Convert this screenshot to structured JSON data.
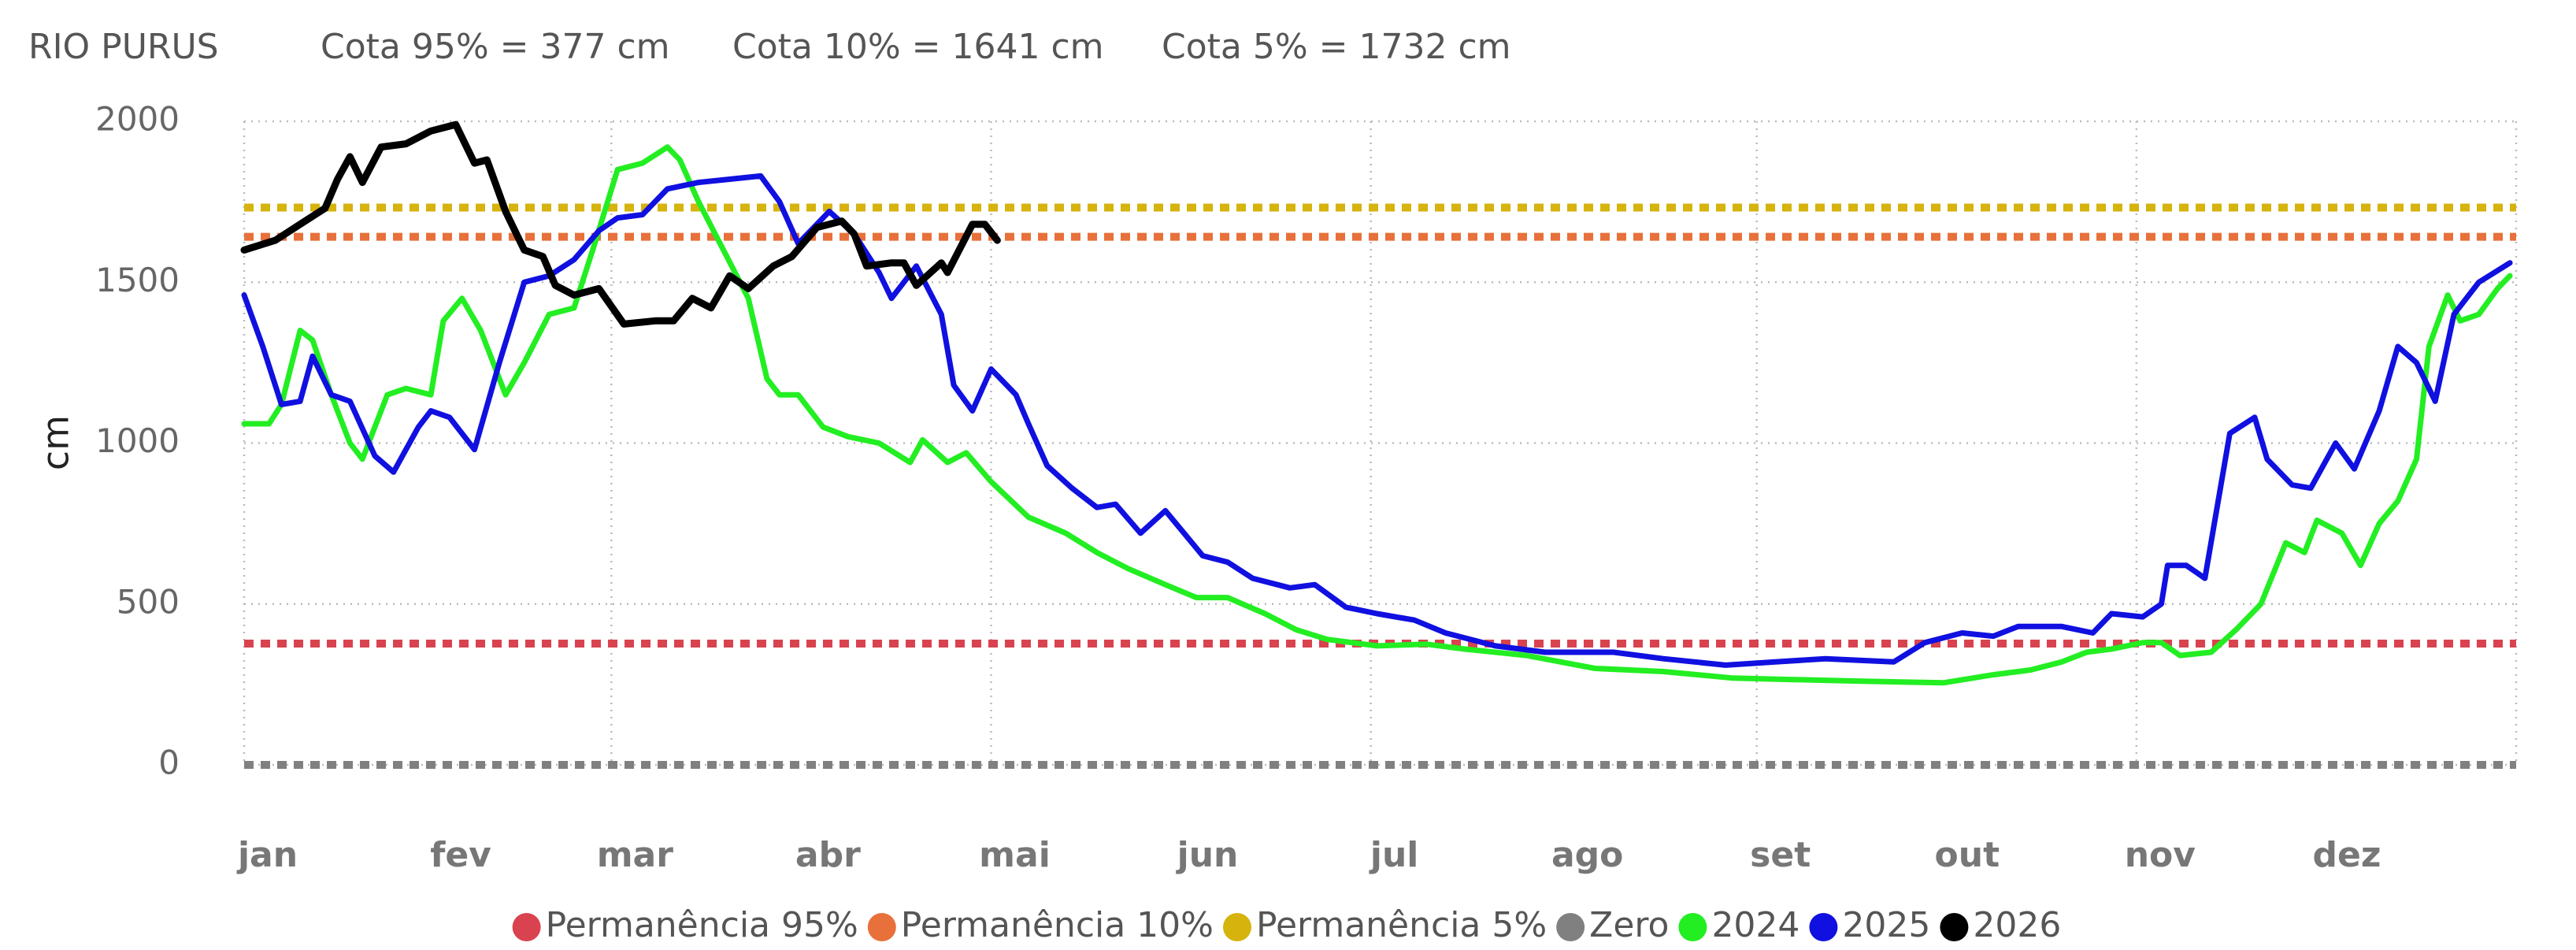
{
  "chart_data": {
    "type": "line",
    "title": "RIO PURUS",
    "annotations": [
      "Cota 95% = 377 cm",
      "Cota 10% = 1641 cm",
      "Cota 5% = 1732 cm"
    ],
    "y_label": "cm",
    "xlim": [
      1,
      366
    ],
    "xticks": [
      {
        "value": 1,
        "label": "jan"
      },
      {
        "value": 32,
        "label": "fev"
      },
      {
        "value": 60,
        "label": "mar"
      },
      {
        "value": 91,
        "label": "abr"
      },
      {
        "value": 121,
        "label": "mai"
      },
      {
        "value": 152,
        "label": "jun"
      },
      {
        "value": 182,
        "label": "jul"
      },
      {
        "value": 213,
        "label": "ago"
      },
      {
        "value": 244,
        "label": "set"
      },
      {
        "value": 274,
        "label": "out"
      },
      {
        "value": 305,
        "label": "nov"
      },
      {
        "value": 335,
        "label": "dez"
      }
    ],
    "ylim": [
      0,
      2000
    ],
    "yticks": [
      0,
      500,
      1000,
      1500,
      2000
    ],
    "grid": true,
    "legend": "bottom",
    "reference_lines": [
      {
        "name": "Permanência 95%",
        "color": "#d9434f",
        "value": 377
      },
      {
        "name": "Permanência 10%",
        "color": "#e8703a",
        "value": 1641
      },
      {
        "name": "Permanência 5%",
        "color": "#d6b30d",
        "value": 1732
      },
      {
        "name": "Zero",
        "color": "#808080",
        "value": 0
      }
    ],
    "series": [
      {
        "name": "2024",
        "color": "#22ee22",
        "x": [
          1,
          5,
          7,
          10,
          12,
          15,
          18,
          20,
          24,
          27,
          31,
          33,
          36,
          39,
          43,
          46,
          50,
          54,
          57,
          61,
          65,
          69,
          71,
          74,
          78,
          82,
          85,
          87,
          90,
          94,
          98,
          103,
          108,
          110,
          114,
          117,
          121,
          127,
          133,
          138,
          143,
          149,
          154,
          159,
          165,
          170,
          175,
          183,
          191,
          197,
          207,
          218,
          229,
          240,
          250,
          261,
          274,
          282,
          288,
          293,
          297,
          301,
          306,
          309,
          312,
          317,
          321,
          325,
          329,
          332,
          334,
          338,
          341,
          344,
          347,
          350,
          352,
          355,
          357,
          360,
          363,
          365
        ],
        "values": [
          1060,
          1060,
          1120,
          1350,
          1320,
          1150,
          1000,
          950,
          1150,
          1170,
          1150,
          1380,
          1450,
          1350,
          1150,
          1250,
          1400,
          1420,
          1600,
          1850,
          1870,
          1920,
          1880,
          1750,
          1600,
          1450,
          1200,
          1150,
          1150,
          1050,
          1020,
          1000,
          940,
          1010,
          940,
          970,
          880,
          770,
          720,
          660,
          610,
          560,
          520,
          520,
          470,
          420,
          390,
          370,
          375,
          360,
          340,
          300,
          290,
          270,
          265,
          260,
          255,
          280,
          295,
          320,
          350,
          360,
          380,
          380,
          340,
          350,
          420,
          500,
          690,
          660,
          760,
          720,
          620,
          750,
          820,
          950,
          1300,
          1460,
          1380,
          1400,
          1480,
          1520
        ]
      },
      {
        "name": "2025",
        "color": "#1010e0",
        "x": [
          1,
          4,
          7,
          10,
          12,
          15,
          18,
          22,
          25,
          29,
          31,
          34,
          38,
          42,
          46,
          50,
          54,
          58,
          61,
          65,
          69,
          74,
          79,
          84,
          87,
          90,
          95,
          99,
          103,
          105,
          109,
          113,
          115,
          118,
          121,
          125,
          127,
          130,
          134,
          138,
          141,
          145,
          149,
          152,
          155,
          159,
          163,
          169,
          173,
          178,
          183,
          189,
          194,
          202,
          210,
          221,
          229,
          239,
          247,
          255,
          266,
          271,
          277,
          282,
          286,
          293,
          298,
          301,
          306,
          309,
          310,
          313,
          316,
          320,
          324,
          326,
          330,
          333,
          337,
          340,
          344,
          347,
          350,
          353,
          356,
          360,
          365
        ],
        "values": [
          1460,
          1300,
          1120,
          1130,
          1270,
          1150,
          1130,
          960,
          910,
          1050,
          1100,
          1080,
          980,
          1250,
          1500,
          1520,
          1570,
          1660,
          1700,
          1710,
          1790,
          1810,
          1820,
          1830,
          1750,
          1620,
          1720,
          1650,
          1530,
          1450,
          1550,
          1400,
          1180,
          1100,
          1230,
          1150,
          1060,
          930,
          860,
          800,
          810,
          720,
          790,
          720,
          650,
          630,
          580,
          550,
          560,
          490,
          470,
          450,
          410,
          370,
          350,
          350,
          330,
          310,
          320,
          330,
          320,
          380,
          410,
          400,
          430,
          430,
          410,
          470,
          460,
          500,
          620,
          620,
          580,
          1030,
          1080,
          950,
          870,
          860,
          1000,
          920,
          1100,
          1300,
          1250,
          1130,
          1400,
          1500,
          1560
        ]
      },
      {
        "name": "2026",
        "color": "#000000",
        "x": [
          1,
          6,
          10,
          14,
          16,
          18,
          20,
          23,
          27,
          31,
          35,
          38,
          40,
          43,
          46,
          49,
          51,
          54,
          58,
          62,
          67,
          70,
          73,
          76,
          79,
          82,
          86,
          89,
          93,
          97,
          99,
          101,
          105,
          107,
          109,
          113,
          114,
          118,
          120,
          122
        ],
        "values": [
          1600,
          1630,
          1680,
          1730,
          1820,
          1890,
          1810,
          1920,
          1930,
          1970,
          1990,
          1870,
          1880,
          1720,
          1600,
          1580,
          1490,
          1460,
          1480,
          1370,
          1380,
          1380,
          1450,
          1420,
          1520,
          1480,
          1550,
          1580,
          1670,
          1690,
          1650,
          1550,
          1560,
          1560,
          1490,
          1560,
          1530,
          1680,
          1680,
          1630
        ]
      }
    ]
  }
}
